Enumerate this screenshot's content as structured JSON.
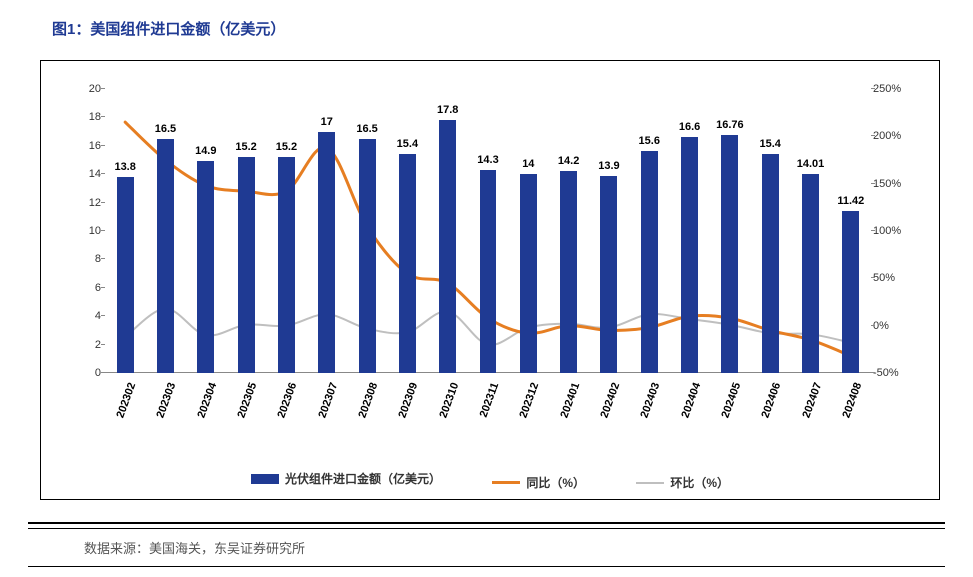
{
  "title": "图1：美国组件进口金额（亿美元）",
  "source": "数据来源：美国海关，东吴证券研究所",
  "chart": {
    "type": "bar+line",
    "categories": [
      "202302",
      "202303",
      "202304",
      "202305",
      "202306",
      "202307",
      "202308",
      "202309",
      "202310",
      "202311",
      "202312",
      "202401",
      "202402",
      "202403",
      "202404",
      "202405",
      "202406",
      "202407",
      "202408"
    ],
    "bar": {
      "label": "光伏组件进口金额（亿美元）",
      "values": [
        13.8,
        16.5,
        14.9,
        15.2,
        15.2,
        17.0,
        16.5,
        15.4,
        17.8,
        14.3,
        14.0,
        14.2,
        13.9,
        15.6,
        16.6,
        16.76,
        15.4,
        14.01,
        11.42
      ],
      "color": "#1f3a93",
      "width_ratio": 0.42
    },
    "line1": {
      "label": "同比（%）",
      "values": [
        215,
        175,
        148,
        142,
        142,
        188,
        105,
        55,
        45,
        8,
        -8,
        0,
        -5,
        -2,
        10,
        8,
        -5,
        -15,
        -32
      ],
      "color": "#e67e22",
      "width": 3
    },
    "line2": {
      "label": "环比（%）",
      "values": [
        -12,
        18,
        -10,
        1,
        0,
        12,
        -3,
        -7,
        15,
        -20,
        -2,
        2,
        -2,
        12,
        7,
        1,
        -8,
        -9,
        -18
      ],
      "color": "#bfbfbf",
      "width": 2
    },
    "y_left": {
      "min": 0,
      "max": 20,
      "step": 2,
      "fontsize": 11
    },
    "y_right": {
      "min": -50,
      "max": 250,
      "step": 50,
      "suffix": "%",
      "fontsize": 11
    },
    "category_fontsize": 11,
    "barlabel_fontsize": 11,
    "background": "#ffffff"
  },
  "legend": {
    "bar": "光伏组件进口金额（亿美元）",
    "l1": "同比（%）",
    "l2": "环比（%）"
  }
}
